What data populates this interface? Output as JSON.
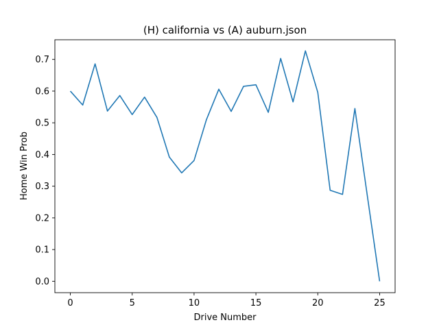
{
  "chart_data": {
    "type": "line",
    "title": "(H) california vs (A) auburn.json",
    "xlabel": "Drive Number",
    "ylabel": "Home Win Prob",
    "xlim": [
      -1.25,
      26.25
    ],
    "ylim": [
      -0.036,
      0.762
    ],
    "xticks": [
      0,
      5,
      10,
      15,
      20,
      25
    ],
    "yticks": [
      0.0,
      0.1,
      0.2,
      0.3,
      0.4,
      0.5,
      0.6,
      0.7
    ],
    "grid": false,
    "series": [
      {
        "color": "#1f77b4",
        "x": [
          0,
          1,
          2,
          3,
          4,
          5,
          6,
          7,
          8,
          9,
          10,
          11,
          12,
          13,
          14,
          15,
          16,
          17,
          18,
          19,
          20,
          21,
          22,
          23,
          24,
          25
        ],
        "values": [
          0.6,
          0.556,
          0.686,
          0.537,
          0.586,
          0.526,
          0.581,
          0.517,
          0.392,
          0.342,
          0.381,
          0.51,
          0.606,
          0.536,
          0.615,
          0.62,
          0.533,
          0.703,
          0.566,
          0.727,
          0.596,
          0.287,
          0.274,
          0.545,
          0.271,
          0.0
        ]
      }
    ]
  }
}
